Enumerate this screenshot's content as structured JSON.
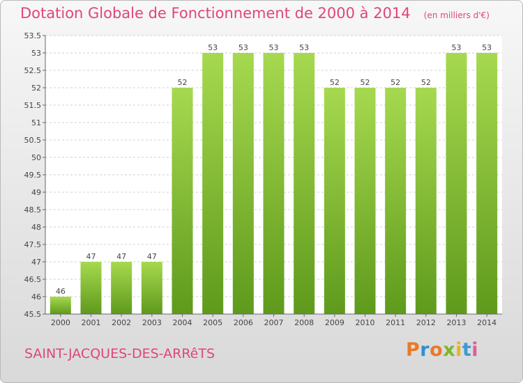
{
  "title": "Dotation Globale de Fonctionnement de 2000 à 2014",
  "unit": "(en milliers d'€)",
  "commune": "SAINT-JACQUES-DES-ARRêTS",
  "logo": {
    "text": "Proxiti",
    "colors": [
      "#e87a2a",
      "#2f8fd0",
      "#e87a2a",
      "#7cb829",
      "#e8b321",
      "#3a9ad9",
      "#e05b9a"
    ]
  },
  "colors": {
    "bar_light": "#a6d94f",
    "bar_dark": "#5f9a1c",
    "title": "#e0457b"
  },
  "chart_data": {
    "type": "bar",
    "categories": [
      "2000",
      "2001",
      "2002",
      "2003",
      "2004",
      "2005",
      "2006",
      "2007",
      "2008",
      "2009",
      "2010",
      "2011",
      "2012",
      "2013",
      "2014"
    ],
    "values": [
      46,
      47,
      47,
      47,
      52,
      53,
      53,
      53,
      53,
      52,
      52,
      52,
      52,
      53,
      53
    ],
    "ylim": [
      45.5,
      53.5
    ],
    "yticks": [
      "45.5",
      "46",
      "46.5",
      "47",
      "47.5",
      "48",
      "48.5",
      "49",
      "49.5",
      "50",
      "50.5",
      "51",
      "51.5",
      "52",
      "52.5",
      "53",
      "53.5"
    ],
    "grid": true
  }
}
